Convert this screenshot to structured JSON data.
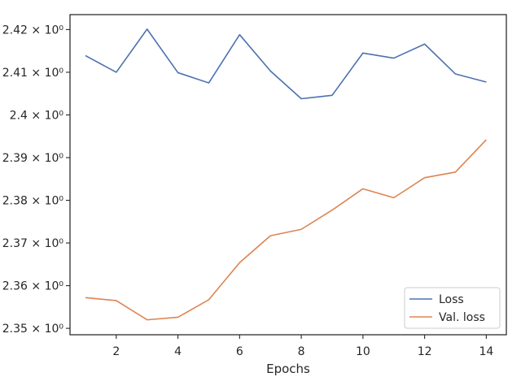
{
  "chart_data": {
    "type": "line",
    "xlabel": "Epochs",
    "ylabel": "",
    "xlim": [
      0.5,
      14.65
    ],
    "ylim": [
      2.3485,
      2.4235
    ],
    "x_ticks": [
      2,
      4,
      6,
      8,
      10,
      12,
      14
    ],
    "y_ticks": [
      {
        "value": 2.35,
        "label": "2.35 × 10⁰"
      },
      {
        "value": 2.36,
        "label": "2.36 × 10⁰"
      },
      {
        "value": 2.37,
        "label": "2.37 × 10⁰"
      },
      {
        "value": 2.38,
        "label": "2.38 × 10⁰"
      },
      {
        "value": 2.39,
        "label": "2.39 × 10⁰"
      },
      {
        "value": 2.4,
        "label": "2.4 × 10⁰"
      },
      {
        "value": 2.41,
        "label": "2.41 × 10⁰"
      },
      {
        "value": 2.42,
        "label": "2.42 × 10⁰"
      }
    ],
    "x": [
      1,
      2,
      3,
      4,
      5,
      6,
      7,
      8,
      9,
      10,
      11,
      12,
      13,
      14
    ],
    "series": [
      {
        "name": "Loss",
        "color": "#4c72b0",
        "values": [
          2.4139,
          2.41,
          2.4201,
          2.4099,
          2.4075,
          2.4188,
          2.4103,
          2.4038,
          2.4046,
          2.4145,
          2.4133,
          2.4166,
          2.4096,
          2.4077
        ]
      },
      {
        "name": "Val. loss",
        "color": "#dd8452",
        "values": [
          2.3572,
          2.3565,
          2.352,
          2.3526,
          2.3567,
          2.3654,
          2.3717,
          2.3732,
          2.3777,
          2.3827,
          2.3806,
          2.3853,
          2.3866,
          2.3942
        ]
      }
    ],
    "grid": false,
    "legend_position": "lower-right",
    "log_scale_y": true
  }
}
